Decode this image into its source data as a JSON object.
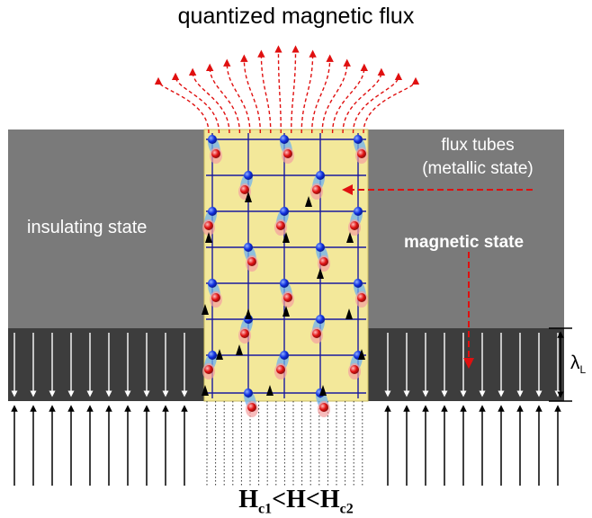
{
  "title": "quantized magnetic flux",
  "insulating_label": "insulating state",
  "flux_tubes_label_line1": "flux tubes",
  "flux_tubes_label_line2": "(metallic state)",
  "magnetic_state_label": "magnetic state",
  "lambda_symbol": "λ",
  "lambda_subscript": "L",
  "formula": {
    "h1": "H",
    "sub1": "c1",
    "lt1": "<",
    "h": "H",
    "lt2": "<",
    "h2": "H",
    "sub2": "c2"
  },
  "colors": {
    "insulating_region": "#7a7a7a",
    "penetration_layer": "#3d3d3d",
    "flux_tube_region": "#f3e89a",
    "grid_lines": "#1a1aa0",
    "flux_lines": "#e01010",
    "spin_blue": "#1030e0",
    "spin_red": "#e01010",
    "halo": "#6fb2ef"
  }
}
